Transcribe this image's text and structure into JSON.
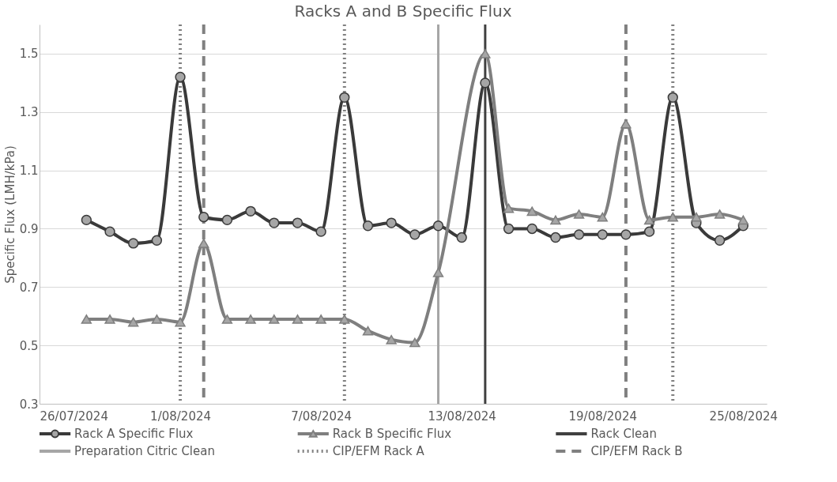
{
  "chart_data": {
    "type": "line",
    "title": "Racks A and B Specific Flux",
    "ylabel": "Specific Flux (LMH/kPa)",
    "xlim": [
      "2024-07-26",
      "2024-08-26"
    ],
    "xticks": [
      {
        "value": "2024-07-26",
        "label": "26/07/2024"
      },
      {
        "value": "2024-08-01",
        "label": "1/08/2024"
      },
      {
        "value": "2024-08-07",
        "label": "7/08/2024"
      },
      {
        "value": "2024-08-13",
        "label": "13/08/2024"
      },
      {
        "value": "2024-08-19",
        "label": "19/08/2024"
      },
      {
        "value": "2024-08-25",
        "label": "25/08/2024"
      }
    ],
    "ylim": [
      0.3,
      1.6
    ],
    "yticks": [
      0.3,
      0.5,
      0.7,
      0.9,
      1.1,
      1.3,
      1.5
    ],
    "grid": "y",
    "legend": "bottom",
    "series": [
      {
        "name": "Rack A Specific Flux",
        "color": "#3a3a3a",
        "marker": "circle",
        "x": [
          "2024-07-28",
          "2024-07-29",
          "2024-07-30",
          "2024-07-31",
          "2024-08-01",
          "2024-08-02",
          "2024-08-03",
          "2024-08-04",
          "2024-08-05",
          "2024-08-06",
          "2024-08-07",
          "2024-08-08",
          "2024-08-09",
          "2024-08-10",
          "2024-08-11",
          "2024-08-12",
          "2024-08-13",
          "2024-08-14",
          "2024-08-15",
          "2024-08-16",
          "2024-08-17",
          "2024-08-18",
          "2024-08-19",
          "2024-08-20",
          "2024-08-21",
          "2024-08-22",
          "2024-08-23",
          "2024-08-24",
          "2024-08-25"
        ],
        "values": [
          0.93,
          0.89,
          0.85,
          0.86,
          1.42,
          0.94,
          0.93,
          0.96,
          0.92,
          0.92,
          0.89,
          1.35,
          0.91,
          0.92,
          0.88,
          0.91,
          0.87,
          1.4,
          0.9,
          0.9,
          0.87,
          0.88,
          0.88,
          0.88,
          0.89,
          1.35,
          0.92,
          0.86,
          0.91
        ]
      },
      {
        "name": "Rack B Specific Flux",
        "color": "#7f7f7f",
        "marker": "triangle",
        "x": [
          "2024-07-28",
          "2024-07-29",
          "2024-07-30",
          "2024-07-31",
          "2024-08-01",
          "2024-08-02",
          "2024-08-03",
          "2024-08-04",
          "2024-08-05",
          "2024-08-06",
          "2024-08-07",
          "2024-08-08",
          "2024-08-09",
          "2024-08-10",
          "2024-08-11",
          "2024-08-12",
          "2024-08-14",
          "2024-08-15",
          "2024-08-16",
          "2024-08-17",
          "2024-08-18",
          "2024-08-19",
          "2024-08-20",
          "2024-08-21",
          "2024-08-22",
          "2024-08-23",
          "2024-08-24",
          "2024-08-25"
        ],
        "values": [
          0.59,
          0.59,
          0.58,
          0.59,
          0.58,
          0.85,
          0.59,
          0.59,
          0.59,
          0.59,
          0.59,
          0.59,
          0.55,
          0.52,
          0.51,
          0.75,
          1.5,
          0.97,
          0.96,
          0.93,
          0.95,
          0.94,
          1.26,
          0.93,
          0.94,
          0.94,
          0.95,
          0.93
        ]
      }
    ],
    "ref_lines": [
      {
        "axis": "x",
        "value": "2024-08-14",
        "label": "Rack Clean",
        "color": "#404040",
        "line_style": "solid"
      },
      {
        "axis": "x",
        "value": "2024-08-12",
        "label": "Preparation Citric Clean",
        "color": "#a6a6a6",
        "line_style": "solid"
      },
      {
        "axis": "x",
        "value": "2024-08-01",
        "label": "CIP/EFM Rack A",
        "color": "#808080",
        "line_style": "dotted"
      },
      {
        "axis": "x",
        "value": "2024-08-08",
        "color": "#808080",
        "line_style": "dotted"
      },
      {
        "axis": "x",
        "value": "2024-08-22",
        "color": "#808080",
        "line_style": "dotted"
      },
      {
        "axis": "x",
        "value": "2024-08-02",
        "label": "CIP/EFM Rack B",
        "color": "#808080",
        "line_style": "dashed"
      },
      {
        "axis": "x",
        "value": "2024-08-20",
        "color": "#808080",
        "line_style": "dashed"
      }
    ]
  }
}
